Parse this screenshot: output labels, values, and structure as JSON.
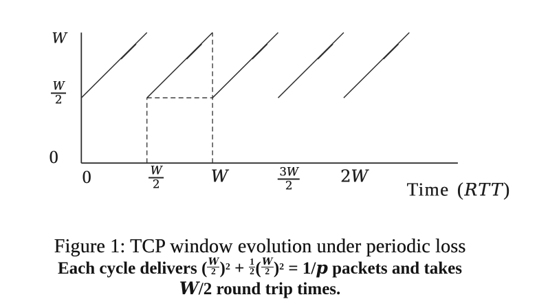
{
  "figure": {
    "caption_title": "Figure 1: TCP window evolution under periodic loss",
    "caption_sub": {
      "pre": "Each cycle delivers (",
      "frac1_num": "W",
      "frac1_den": "2",
      "close1": ")",
      "sup1": "2",
      "plus": " + ",
      "frac2_num": "1",
      "frac2_den": "2",
      "open2": "(",
      "frac3_num": "W",
      "frac3_den": "2",
      "close2": ")",
      "sup2": "2",
      "eq": " = 1/",
      "p_var": "p",
      "post": " packets and takes"
    },
    "caption_sub2": {
      "w_var": "W",
      "slash2": "/2",
      "text": " round trip times."
    }
  },
  "chart_data": {
    "type": "line",
    "title": "",
    "xlabel_text": "Time (",
    "xlabel_var": "RTT",
    "xlabel_close": ")",
    "ylabel": "",
    "xlim_W": [
      0,
      2.87
    ],
    "ylim_W": [
      0,
      1.0
    ],
    "grid": false,
    "legend": false,
    "x_ticks": [
      {
        "x": 0,
        "pre": "0",
        "var": ""
      },
      {
        "x": 0.5,
        "num_pre": "",
        "num_var": "W",
        "den": "2"
      },
      {
        "x": 1,
        "pre": "",
        "var": "W"
      },
      {
        "x": 1.5,
        "num_pre": "3",
        "num_var": "W",
        "den": "2"
      },
      {
        "x": 2,
        "pre": "2",
        "var": "W"
      }
    ],
    "y_ticks": [
      {
        "y": 1,
        "pre": "",
        "var": "W"
      },
      {
        "y": 0.5,
        "num_pre": "",
        "num_var": "W",
        "den": "2"
      },
      {
        "y": 0,
        "pre": "0",
        "var": ""
      }
    ],
    "series": [
      {
        "segments": [
          {
            "x1": 0.0,
            "y1": 0.5,
            "x2": 0.5,
            "y2": 1.0
          },
          {
            "x1": 0.5,
            "y1": 0.5,
            "x2": 1.0,
            "y2": 1.0
          },
          {
            "x1": 1.0,
            "y1": 0.5,
            "x2": 1.5,
            "y2": 1.0
          },
          {
            "x1": 1.5,
            "y1": 0.5,
            "x2": 2.0,
            "y2": 1.0
          },
          {
            "x1": 2.0,
            "y1": 0.5,
            "x2": 2.5,
            "y2": 1.0
          }
        ]
      }
    ],
    "guides": [
      {
        "kind": "v",
        "x": 0.5,
        "y1": 0.0,
        "y2": 0.5
      },
      {
        "kind": "v",
        "x": 1.0,
        "y1": 0.0,
        "y2": 1.0
      },
      {
        "kind": "h",
        "y": 0.5,
        "x1": 0.5,
        "x2": 1.0
      }
    ]
  }
}
